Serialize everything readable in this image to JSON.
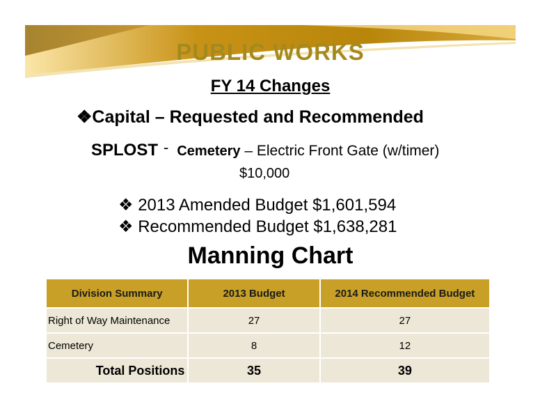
{
  "title": "PUBLIC WORKS",
  "subtitle": "FY 14 Changes",
  "capital_heading": "Capital – Requested and Recommended",
  "splost": {
    "label": "SPLOST",
    "dash": "-",
    "category": "Cemetery",
    "description": " – Electric Front Gate (w/timer)",
    "amount": "$10,000"
  },
  "budgets": [
    {
      "bullet": "❖",
      "text": "2013 Amended Budget $1,601,594"
    },
    {
      "bullet": "❖",
      "text": "Recommended Budget $1,638,281"
    }
  ],
  "manning_title": "Manning Chart",
  "table": {
    "headers": [
      "Division Summary",
      "2013 Budget",
      "2014 Recommended Budget"
    ],
    "rows": [
      {
        "division": "Right of Way Maintenance",
        "budget_2013": "27",
        "budget_2014": "27"
      },
      {
        "division": "Cemetery",
        "budget_2013": "8",
        "budget_2014": "12"
      }
    ],
    "total": {
      "label": "Total Positions",
      "budget_2013": "35",
      "budget_2014": "39"
    }
  },
  "colors": {
    "gold": "#c8a027",
    "title_gold": "#a48a1e",
    "row_bg": "#ece7d6"
  }
}
